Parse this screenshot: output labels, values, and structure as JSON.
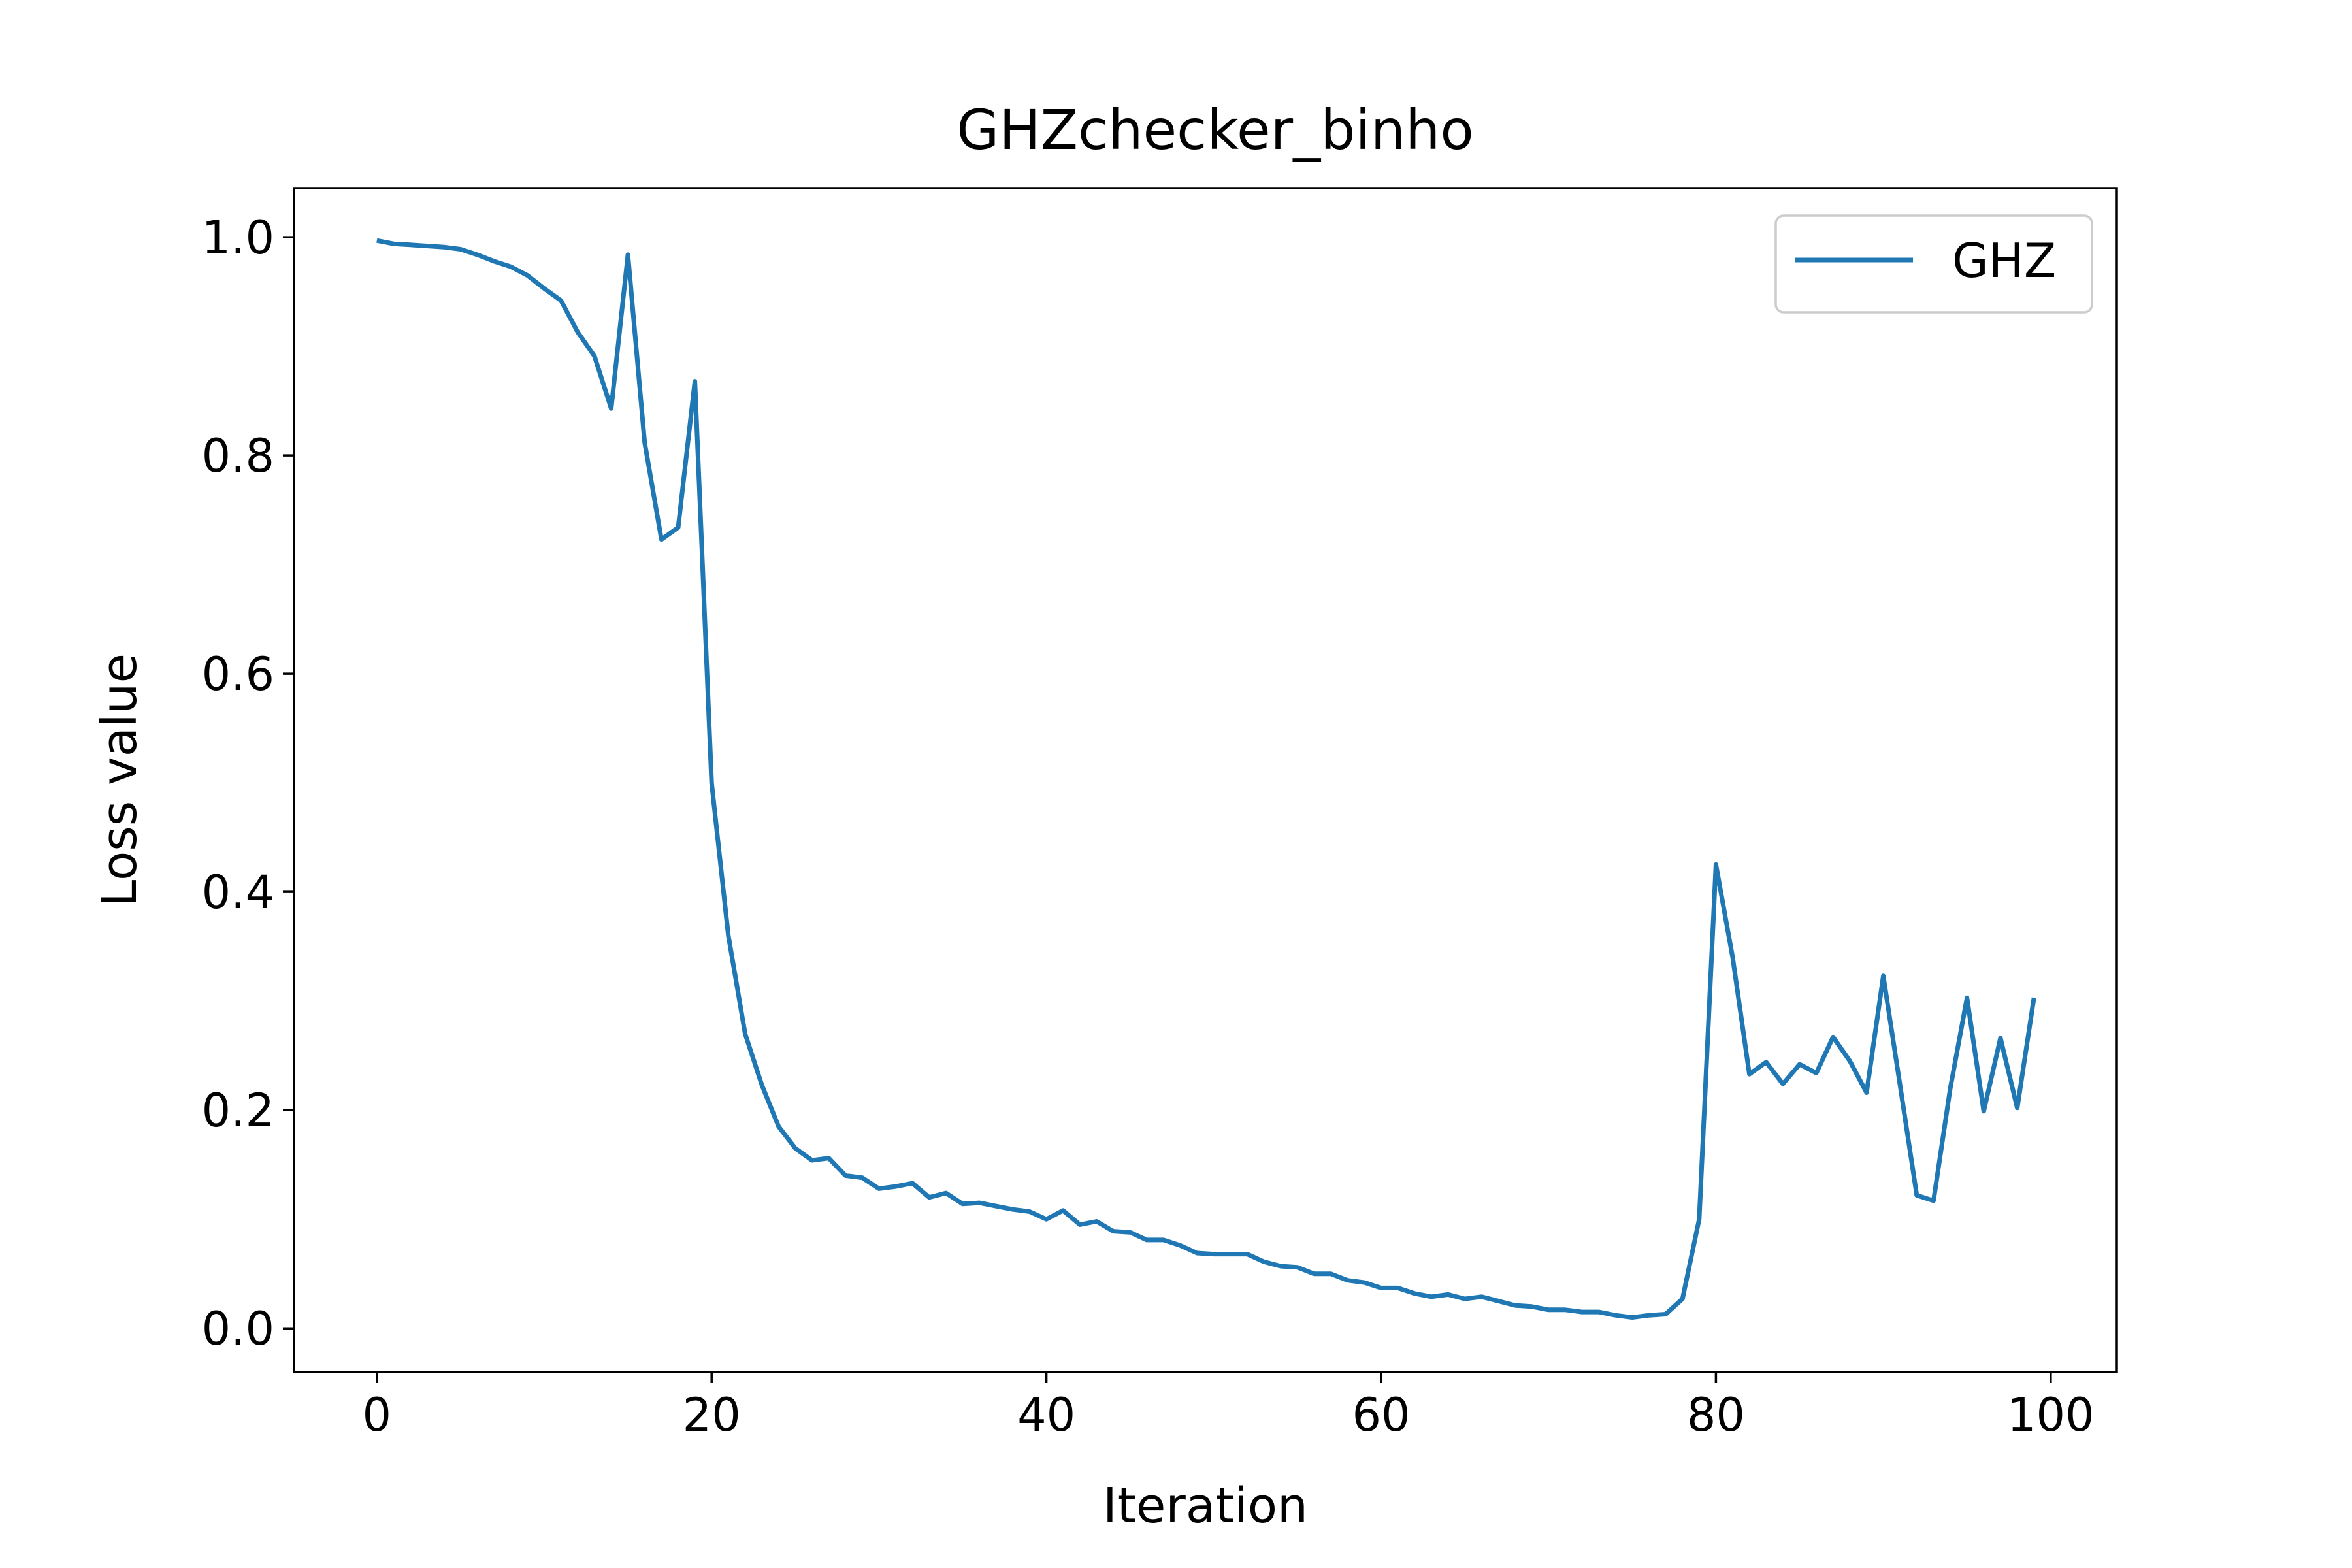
{
  "chart_data": {
    "type": "line",
    "title": "GHZchecker_binho",
    "xlabel": "Iteration",
    "ylabel": "Loss value",
    "xlim": [
      -4.95,
      103.95
    ],
    "ylim": [
      -0.04,
      1.045
    ],
    "xticks": [
      0,
      20,
      40,
      60,
      80,
      100
    ],
    "xtick_labels": [
      "0",
      "20",
      "40",
      "60",
      "80",
      "100"
    ],
    "yticks": [
      0.0,
      0.2,
      0.4,
      0.6,
      0.8,
      1.0
    ],
    "ytick_labels": [
      "0.0",
      "0.2",
      "0.4",
      "0.6",
      "0.8",
      "1.0"
    ],
    "grid": false,
    "legend_position": "top-right",
    "series": [
      {
        "name": "GHZ",
        "color": "#1f77b4",
        "x": [
          0,
          1,
          2,
          3,
          4,
          5,
          6,
          7,
          8,
          9,
          10,
          11,
          12,
          13,
          14,
          15,
          16,
          17,
          18,
          19,
          20,
          21,
          22,
          23,
          24,
          25,
          26,
          27,
          28,
          29,
          30,
          31,
          32,
          33,
          34,
          35,
          36,
          37,
          38,
          39,
          40,
          41,
          42,
          43,
          44,
          45,
          46,
          47,
          48,
          49,
          50,
          51,
          52,
          53,
          54,
          55,
          56,
          57,
          58,
          59,
          60,
          61,
          62,
          63,
          64,
          65,
          66,
          67,
          68,
          69,
          70,
          71,
          72,
          73,
          74,
          75,
          76,
          77,
          78,
          79,
          80,
          81,
          82,
          83,
          84,
          85,
          86,
          87,
          88,
          89,
          90,
          91,
          92,
          93,
          94,
          95,
          96,
          97,
          98,
          99
        ],
        "values": [
          0.997,
          0.994,
          0.993,
          0.992,
          0.991,
          0.989,
          0.984,
          0.978,
          0.973,
          0.965,
          0.953,
          0.942,
          0.913,
          0.891,
          0.843,
          0.984,
          0.812,
          0.723,
          0.734,
          0.868,
          0.5,
          0.36,
          0.27,
          0.223,
          0.185,
          0.165,
          0.154,
          0.156,
          0.14,
          0.138,
          0.128,
          0.13,
          0.133,
          0.12,
          0.124,
          0.114,
          0.115,
          0.112,
          0.109,
          0.107,
          0.1,
          0.108,
          0.095,
          0.098,
          0.089,
          0.088,
          0.081,
          0.081,
          0.076,
          0.069,
          0.068,
          0.068,
          0.068,
          0.061,
          0.057,
          0.056,
          0.05,
          0.05,
          0.044,
          0.042,
          0.037,
          0.037,
          0.032,
          0.029,
          0.031,
          0.027,
          0.029,
          0.025,
          0.021,
          0.02,
          0.017,
          0.017,
          0.015,
          0.015,
          0.012,
          0.01,
          0.012,
          0.013,
          0.027,
          0.1,
          0.425,
          0.34,
          0.233,
          0.244,
          0.224,
          0.242,
          0.234,
          0.267,
          0.245,
          0.216,
          0.323,
          0.223,
          0.122,
          0.117,
          0.22,
          0.303,
          0.199,
          0.266,
          0.202,
          0.303
        ]
      }
    ]
  }
}
